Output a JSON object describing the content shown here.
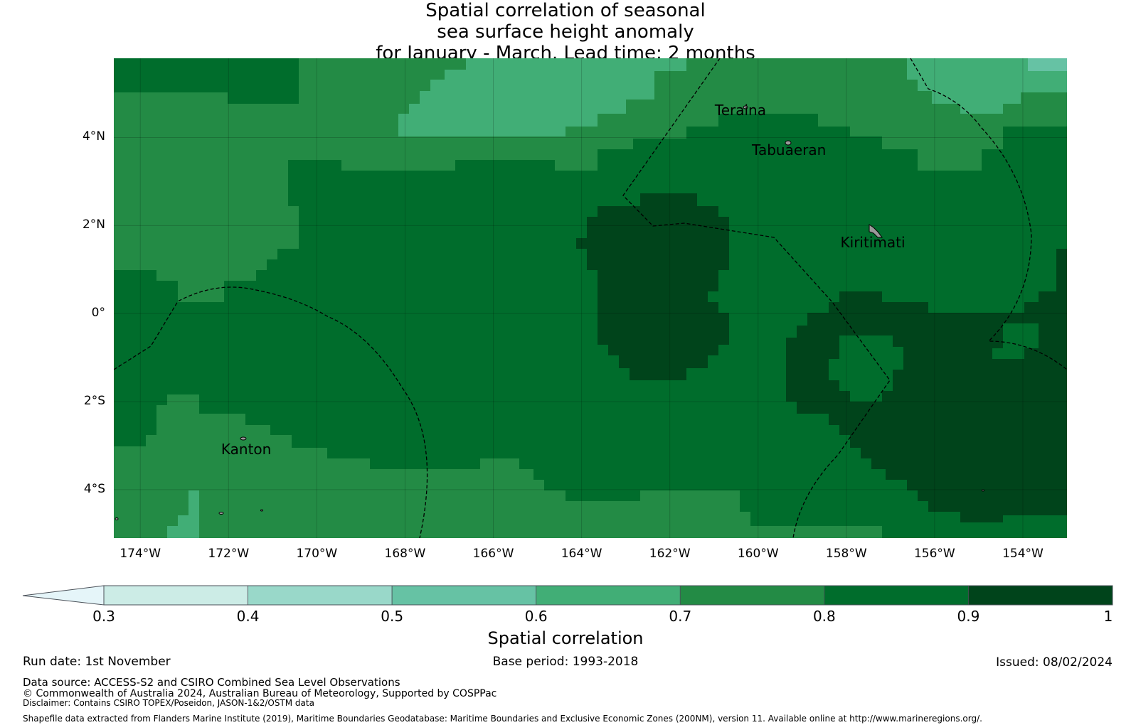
{
  "title_lines": [
    "Spatial correlation of seasonal",
    "sea surface height anomaly",
    "for January - March. Lead time: 2 months"
  ],
  "axes": {
    "lat_labels": [
      {
        "value": 4,
        "text": "4°N"
      },
      {
        "value": 2,
        "text": "2°N"
      },
      {
        "value": 0,
        "text": "0°"
      },
      {
        "value": -2,
        "text": "2°S"
      },
      {
        "value": -4,
        "text": "4°S"
      }
    ],
    "lon_labels": [
      {
        "value": -174,
        "text": "174°W"
      },
      {
        "value": -172,
        "text": "172°W"
      },
      {
        "value": -170,
        "text": "170°W"
      },
      {
        "value": -168,
        "text": "168°W"
      },
      {
        "value": -166,
        "text": "166°W"
      },
      {
        "value": -164,
        "text": "164°W"
      },
      {
        "value": -162,
        "text": "162°W"
      },
      {
        "value": -160,
        "text": "160°W"
      },
      {
        "value": -158,
        "text": "158°W"
      },
      {
        "value": -156,
        "text": "156°W"
      },
      {
        "value": -154,
        "text": "154°W"
      }
    ],
    "lon_range": [
      -174.6,
      -153
    ],
    "lat_range": [
      -5.1,
      5.8
    ]
  },
  "places": [
    {
      "name": "Teraina",
      "lon": -160.4,
      "lat": 4.6
    },
    {
      "name": "Tabuaeran",
      "lon": -159.3,
      "lat": 3.7
    },
    {
      "name": "Kiritimati",
      "lon": -157.4,
      "lat": 1.6
    },
    {
      "name": "Kanton",
      "lon": -171.6,
      "lat": -3.1
    }
  ],
  "colorbar": {
    "label": "Spatial correlation",
    "ticks": [
      "0.3",
      "0.4",
      "0.5",
      "0.6",
      "0.7",
      "0.8",
      "0.9",
      "1"
    ],
    "colors": [
      "#ccece6",
      "#99d8c9",
      "#66c2a4",
      "#41ae76",
      "#238b45",
      "#006d2c",
      "#00441b"
    ],
    "extend_color": "#e5f5f9"
  },
  "footer": {
    "run_date": "Run date: 1st November",
    "base_period": "Base period: 1993-2018",
    "issued": "Issued: 08/02/2024",
    "data_source": "Data source: ACCESS-S2 and CSIRO Combined Sea Level Observations",
    "copyright": "© Commonwealth of Australia 2024, Australian Bureau of Meteorology, Supported by COSPPac",
    "disclaimer": "Disclaimer: Contains CSIRO TOPEX/Poseidon, JASON-1&2/OSTM data",
    "shapefile": "Shapefile data extracted from Flanders Marine Institute (2019), Maritime Boundaries Geodatabase: Maritime Boundaries and Exclusive Economic Zones (200NM), version 11. Available online at http://www.marineregions.org/."
  }
}
